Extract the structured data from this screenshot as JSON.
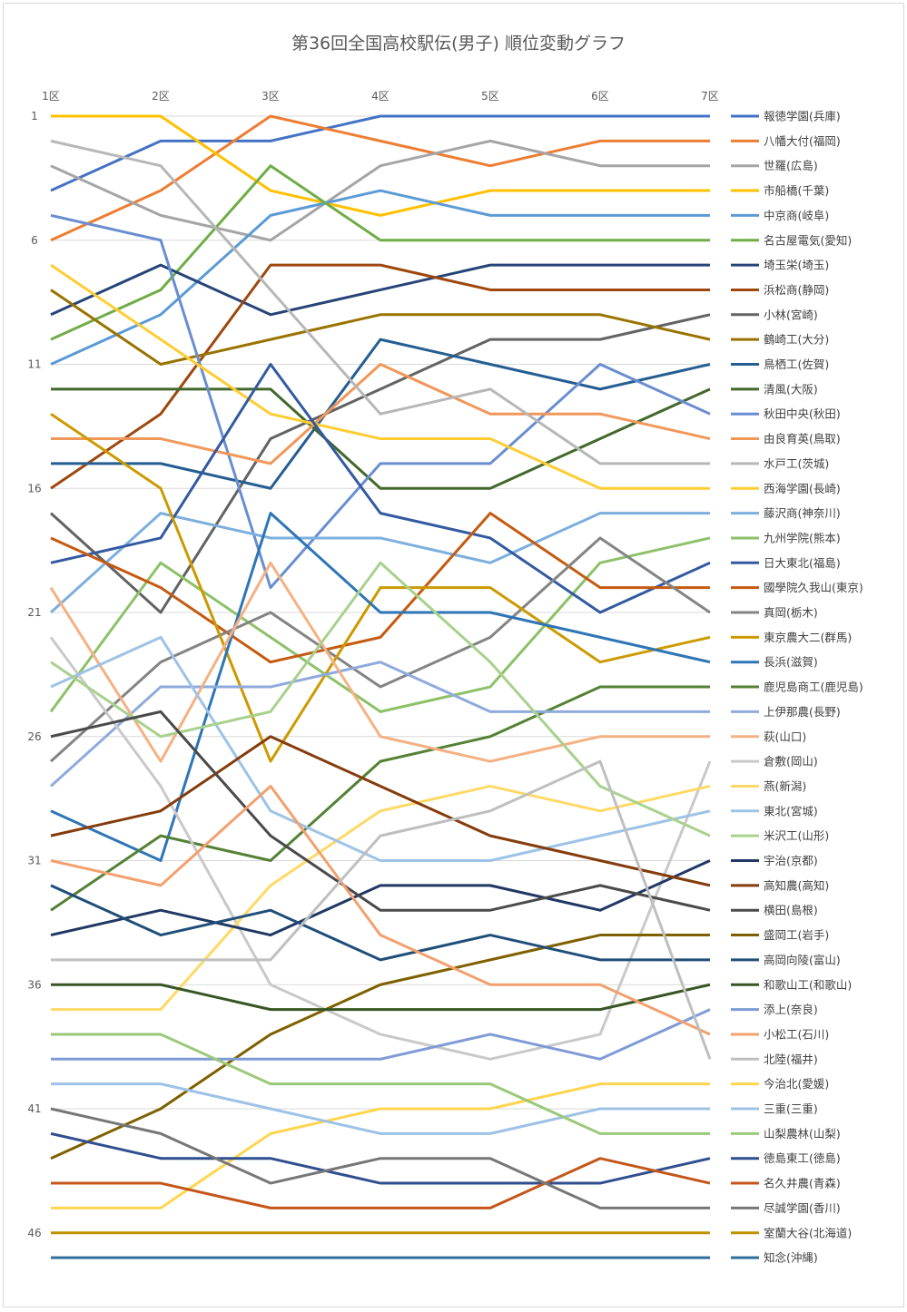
{
  "chart_data": {
    "type": "line",
    "title": "第36回全国高校駅伝(男子) 順位変動グラフ",
    "x": [
      "1区",
      "2区",
      "3区",
      "4区",
      "5区",
      "6区",
      "7区"
    ],
    "y_ticks": [
      1,
      6,
      11,
      16,
      21,
      26,
      31,
      36,
      41,
      46
    ],
    "ylim": [
      1,
      47
    ],
    "y_inverted": true,
    "grid": true,
    "legend_position": "right",
    "series": [
      {
        "name": "報徳学園(兵庫)",
        "color": "#4472C4",
        "values": [
          4,
          2,
          2,
          1,
          1,
          1,
          1
        ]
      },
      {
        "name": "八幡大付(福岡)",
        "color": "#ED7D31",
        "values": [
          6,
          4,
          1,
          2,
          3,
          2,
          2
        ]
      },
      {
        "name": "世羅(広島)",
        "color": "#A5A5A5",
        "values": [
          3,
          5,
          6,
          3,
          2,
          3,
          3
        ]
      },
      {
        "name": "市船橋(千葉)",
        "color": "#FFC000",
        "values": [
          1,
          1,
          4,
          5,
          4,
          4,
          4
        ]
      },
      {
        "name": "中京商(岐阜)",
        "color": "#5B9BD5",
        "values": [
          11,
          9,
          5,
          4,
          5,
          5,
          5
        ]
      },
      {
        "name": "名古屋電気(愛知)",
        "color": "#70AD47",
        "values": [
          10,
          8,
          3,
          6,
          6,
          6,
          6
        ]
      },
      {
        "name": "埼玉栄(埼玉)",
        "color": "#264478",
        "values": [
          9,
          7,
          9,
          8,
          7,
          7,
          7
        ]
      },
      {
        "name": "浜松商(静岡)",
        "color": "#9E480E",
        "values": [
          16,
          13,
          7,
          7,
          8,
          8,
          8
        ]
      },
      {
        "name": "小林(宮崎)",
        "color": "#636363",
        "values": [
          17,
          21,
          14,
          12,
          10,
          10,
          9
        ]
      },
      {
        "name": "鶴崎工(大分)",
        "color": "#997300",
        "values": [
          8,
          11,
          10,
          9,
          9,
          9,
          10
        ]
      },
      {
        "name": "鳥栖工(佐賀)",
        "color": "#255E91",
        "values": [
          15,
          15,
          16,
          10,
          11,
          12,
          11
        ]
      },
      {
        "name": "清風(大阪)",
        "color": "#43682B",
        "values": [
          12,
          12,
          12,
          16,
          16,
          14,
          12
        ]
      },
      {
        "name": "秋田中央(秋田)",
        "color": "#698ED0",
        "values": [
          5,
          6,
          20,
          15,
          15,
          11,
          13
        ]
      },
      {
        "name": "由良育英(鳥取)",
        "color": "#F1975A",
        "values": [
          14,
          14,
          15,
          11,
          13,
          13,
          14
        ]
      },
      {
        "name": "水戸工(茨城)",
        "color": "#B7B7B7",
        "values": [
          2,
          3,
          8,
          13,
          12,
          15,
          15
        ]
      },
      {
        "name": "西海学園(長崎)",
        "color": "#FFCD33",
        "values": [
          7,
          10,
          13,
          14,
          14,
          16,
          16
        ]
      },
      {
        "name": "藤沢商(神奈川)",
        "color": "#7CAFDD",
        "values": [
          21,
          17,
          18,
          18,
          19,
          17,
          17
        ]
      },
      {
        "name": "九州学院(熊本)",
        "color": "#8CC168",
        "values": [
          25,
          19,
          22,
          25,
          24,
          19,
          18
        ]
      },
      {
        "name": "日大東北(福島)",
        "color": "#335AA1",
        "values": [
          19,
          18,
          11,
          17,
          18,
          21,
          19
        ]
      },
      {
        "name": "國學院久我山(東京)",
        "color": "#C55A11",
        "values": [
          18,
          20,
          23,
          22,
          17,
          20,
          20
        ]
      },
      {
        "name": "真岡(栃木)",
        "color": "#848484",
        "values": [
          27,
          23,
          21,
          24,
          22,
          18,
          21
        ]
      },
      {
        "name": "東京農大二(群馬)",
        "color": "#CC9A00",
        "values": [
          13,
          16,
          27,
          20,
          20,
          23,
          22
        ]
      },
      {
        "name": "長浜(滋賀)",
        "color": "#2E75B6",
        "values": [
          29,
          31,
          17,
          21,
          21,
          22,
          23
        ]
      },
      {
        "name": "鹿児島商工(鹿児島)",
        "color": "#548235",
        "values": [
          33,
          30,
          31,
          27,
          26,
          24,
          24
        ]
      },
      {
        "name": "上伊那農(長野)",
        "color": "#8FAADC",
        "values": [
          28,
          24,
          24,
          23,
          25,
          25,
          25
        ]
      },
      {
        "name": "萩(山口)",
        "color": "#F4B183",
        "values": [
          20,
          27,
          19,
          26,
          27,
          26,
          26
        ]
      },
      {
        "name": "倉敷(岡山)",
        "color": "#C9C9C9",
        "values": [
          22,
          28,
          36,
          38,
          39,
          38,
          27
        ]
      },
      {
        "name": "燕(新潟)",
        "color": "#FFD966",
        "values": [
          37,
          37,
          32,
          29,
          28,
          29,
          28
        ]
      },
      {
        "name": "東北(宮城)",
        "color": "#9DC3E6",
        "values": [
          24,
          22,
          29,
          31,
          31,
          30,
          29
        ]
      },
      {
        "name": "米沢工(山形)",
        "color": "#A9D18E",
        "values": [
          23,
          26,
          25,
          19,
          23,
          28,
          30
        ]
      },
      {
        "name": "宇治(京都)",
        "color": "#203864",
        "values": [
          34,
          33,
          34,
          32,
          32,
          33,
          31
        ]
      },
      {
        "name": "高知農(高知)",
        "color": "#843C0C",
        "values": [
          30,
          29,
          26,
          28,
          30,
          31,
          32
        ]
      },
      {
        "name": "横田(島根)",
        "color": "#4A4A4A",
        "values": [
          26,
          25,
          30,
          33,
          33,
          32,
          33
        ]
      },
      {
        "name": "盛岡工(岩手)",
        "color": "#7F6000",
        "values": [
          43,
          41,
          38,
          36,
          35,
          34,
          34
        ]
      },
      {
        "name": "高岡向陵(富山)",
        "color": "#1F4E79",
        "values": [
          32,
          34,
          33,
          35,
          34,
          35,
          35
        ]
      },
      {
        "name": "和歌山工(和歌山)",
        "color": "#375623",
        "values": [
          36,
          36,
          37,
          37,
          37,
          37,
          36
        ]
      },
      {
        "name": "添上(奈良)",
        "color": "#7F9BD6",
        "values": [
          39,
          39,
          39,
          39,
          38,
          39,
          37
        ]
      },
      {
        "name": "小松工(石川)",
        "color": "#F2A06E",
        "values": [
          31,
          32,
          28,
          34,
          36,
          36,
          38
        ]
      },
      {
        "name": "北陸(福井)",
        "color": "#BFBFBF",
        "values": [
          35,
          35,
          35,
          30,
          29,
          27,
          39
        ]
      },
      {
        "name": "今治北(愛媛)",
        "color": "#FFD54F",
        "values": [
          45,
          45,
          42,
          41,
          41,
          40,
          40
        ]
      },
      {
        "name": "三重(三重)",
        "color": "#9CC2E5",
        "values": [
          40,
          40,
          41,
          42,
          42,
          41,
          41
        ]
      },
      {
        "name": "山梨農林(山梨)",
        "color": "#9BC97A",
        "values": [
          38,
          38,
          40,
          40,
          40,
          42,
          42
        ]
      },
      {
        "name": "徳島東工(徳島)",
        "color": "#2F4F8F",
        "values": [
          42,
          43,
          43,
          44,
          44,
          44,
          43
        ]
      },
      {
        "name": "名久井農(青森)",
        "color": "#C4561A",
        "values": [
          44,
          44,
          45,
          45,
          45,
          43,
          44
        ]
      },
      {
        "name": "尽誠学園(香川)",
        "color": "#767676",
        "values": [
          41,
          42,
          44,
          43,
          43,
          45,
          45
        ]
      },
      {
        "name": "室蘭大谷(北海道)",
        "color": "#BF9000",
        "values": [
          46,
          46,
          46,
          46,
          46,
          46,
          46
        ]
      },
      {
        "name": "知念(沖縄)",
        "color": "#2E6E9E",
        "values": [
          47,
          47,
          47,
          47,
          47,
          47,
          47
        ]
      }
    ]
  }
}
